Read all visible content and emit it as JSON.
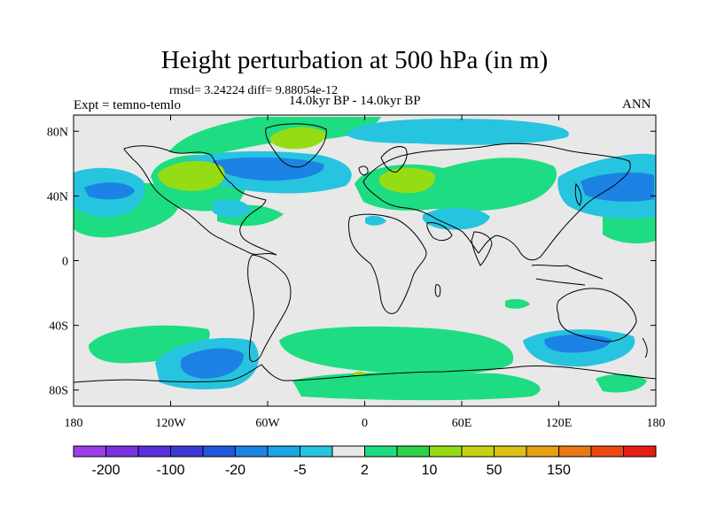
{
  "header": {
    "title": "Height perturbation at 500 hPa (in m)",
    "stats": "rmsd= 3.24224 diff= 9.88054e-12",
    "left_label": "Expt = temno-temlo",
    "center_label": "14.0kyr BP - 14.0kyr BP",
    "right_label": "ANN"
  },
  "chart_data": {
    "type": "heatmap",
    "title": "Height perturbation at 500 hPa (in m)",
    "subtitle": "14.0kyr BP - 14.0kyr BP",
    "units": "m",
    "projection": "cylindrical equidistant",
    "xlim": [
      -180,
      180
    ],
    "ylim": [
      -90,
      90
    ],
    "x_ticks": [
      {
        "value": -180,
        "label": "180"
      },
      {
        "value": -120,
        "label": "120W"
      },
      {
        "value": -60,
        "label": "60W"
      },
      {
        "value": 0,
        "label": "0"
      },
      {
        "value": 60,
        "label": "60E"
      },
      {
        "value": 120,
        "label": "120E"
      },
      {
        "value": 180,
        "label": "180"
      }
    ],
    "y_ticks": [
      {
        "value": 80,
        "label": "80N"
      },
      {
        "value": 40,
        "label": "40N"
      },
      {
        "value": 0,
        "label": "0"
      },
      {
        "value": -40,
        "label": "40S"
      },
      {
        "value": -80,
        "label": "80S"
      }
    ],
    "colorbar": {
      "colors": [
        "#9d3ee8",
        "#7832e0",
        "#5a2ed8",
        "#3c3ad2",
        "#1f58dc",
        "#1c82e4",
        "#19a6e3",
        "#26c4de",
        "#e8e8e8",
        "#1edc82",
        "#2ed14a",
        "#96dc14",
        "#c8d214",
        "#dcc014",
        "#e6a014",
        "#ea7814",
        "#ec4814",
        "#e41e14"
      ],
      "labels": [
        {
          "after_box": 1,
          "text": "-200"
        },
        {
          "after_box": 3,
          "text": "-100"
        },
        {
          "after_box": 5,
          "text": "-20"
        },
        {
          "after_box": 7,
          "text": "-5"
        },
        {
          "after_box": 9,
          "text": "2"
        },
        {
          "after_box": 11,
          "text": "10"
        },
        {
          "after_box": 13,
          "text": "50"
        },
        {
          "after_box": 15,
          "text": "150"
        }
      ]
    },
    "anomalies": [
      {
        "name": "arctic-canada-low",
        "lon": -85,
        "lat": 58,
        "rx": 35,
        "ry": 14,
        "level": 5
      },
      {
        "name": "atlantic-low",
        "lon": -40,
        "lat": 48,
        "rx": 30,
        "ry": 8,
        "level": 4
      },
      {
        "name": "north-pacific-low",
        "lon": -160,
        "lat": 45,
        "rx": 16,
        "ry": 9,
        "level": 5
      },
      {
        "name": "west-pacific-low",
        "lon": 160,
        "lat": 45,
        "rx": 20,
        "ry": 13,
        "level": 5
      },
      {
        "name": "arctic-siberia-low",
        "lon": 50,
        "lat": 80,
        "rx": 40,
        "ry": 5,
        "level": 6
      },
      {
        "name": "middle-east-low",
        "lon": 50,
        "lat": 30,
        "rx": 18,
        "ry": 6,
        "level": 6
      },
      {
        "name": "southern-pacific-low",
        "lon": -100,
        "lat": -68,
        "rx": 40,
        "ry": 13,
        "level": 5
      },
      {
        "name": "southern-indian-low",
        "lon": 130,
        "lat": -55,
        "rx": 28,
        "ry": 10,
        "level": 5
      },
      {
        "name": "north-america-high",
        "lon": -105,
        "lat": 52,
        "rx": 24,
        "ry": 10,
        "level": 11
      },
      {
        "name": "greenland-high",
        "lon": -30,
        "lat": 80,
        "rx": 28,
        "ry": 9,
        "level": 11
      },
      {
        "name": "europe-high",
        "lon": 25,
        "lat": 52,
        "rx": 24,
        "ry": 9,
        "level": 11
      },
      {
        "name": "asia-high",
        "lon": 80,
        "lat": 60,
        "rx": 30,
        "ry": 10,
        "level": 9
      },
      {
        "name": "southern-atlantic-high",
        "lon": 30,
        "lat": -50,
        "rx": 45,
        "ry": 9,
        "level": 9
      },
      {
        "name": "antarctic-high",
        "lon": 10,
        "lat": -80,
        "rx": 40,
        "ry": 5,
        "level": 9
      },
      {
        "name": "south-pacific-high",
        "lon": -155,
        "lat": -58,
        "rx": 25,
        "ry": 8,
        "level": 9
      }
    ]
  }
}
